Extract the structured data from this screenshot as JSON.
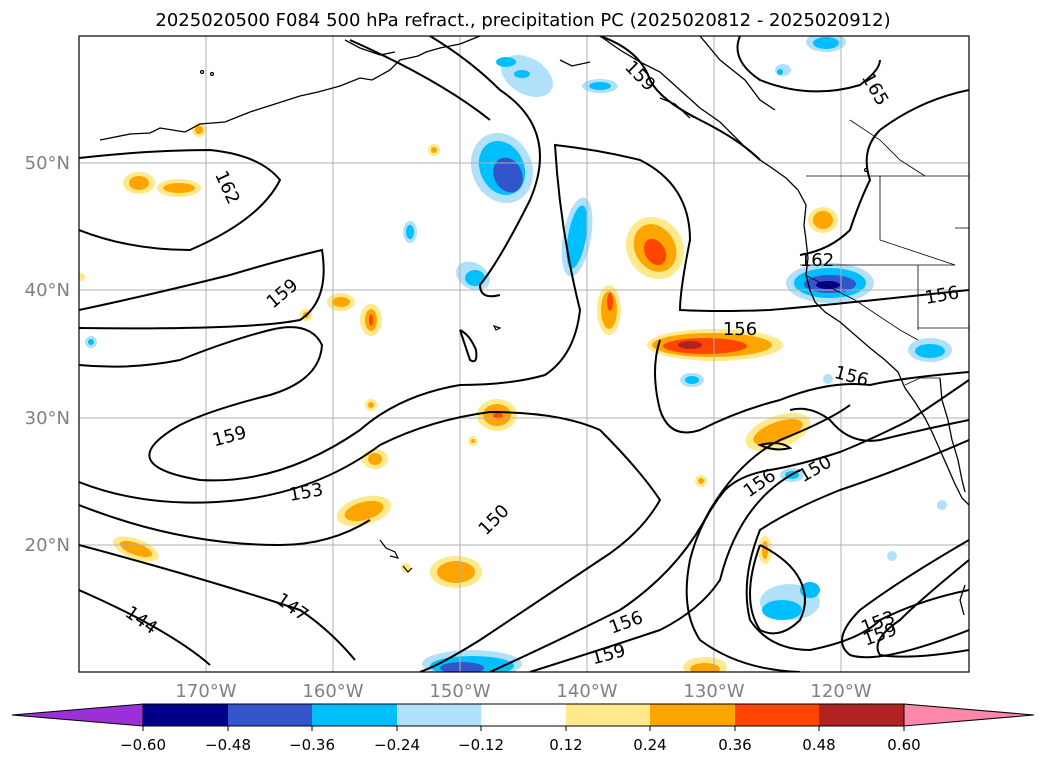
{
  "title": "2025020500 F084 500 hPa refract., precipitation PC (2025020812 - 2025020912)",
  "axes": {
    "lon_ticks": [
      "170°W",
      "160°W",
      "150°W",
      "140°W",
      "130°W",
      "120°W"
    ],
    "lat_ticks": [
      "50°N",
      "40°N",
      "30°N",
      "20°N"
    ]
  },
  "contour_labels": [
    {
      "text": "165",
      "key": "a"
    },
    {
      "text": "162",
      "key": "b"
    },
    {
      "text": "162",
      "key": "c"
    },
    {
      "text": "159",
      "key": "d"
    },
    {
      "text": "159",
      "key": "e"
    },
    {
      "text": "159",
      "key": "f"
    },
    {
      "text": "159",
      "key": "g"
    },
    {
      "text": "159",
      "key": "h"
    },
    {
      "text": "156",
      "key": "i"
    },
    {
      "text": "156",
      "key": "j"
    },
    {
      "text": "156",
      "key": "k"
    },
    {
      "text": "156",
      "key": "l"
    },
    {
      "text": "156",
      "key": "m"
    },
    {
      "text": "153",
      "key": "n"
    },
    {
      "text": "153",
      "key": "o"
    },
    {
      "text": "150",
      "key": "p"
    },
    {
      "text": "150",
      "key": "q"
    },
    {
      "text": "147",
      "key": "r"
    },
    {
      "text": "144",
      "key": "s"
    }
  ],
  "colorbar": {
    "tick_labels": [
      "−0.60",
      "−0.48",
      "−0.36",
      "−0.24",
      "−0.12",
      "0.12",
      "0.24",
      "0.36",
      "0.48",
      "0.60"
    ],
    "colors": [
      "#9b30d9",
      "#00008b",
      "#3355cc",
      "#00bfff",
      "#b0e0fa",
      "#ffffff",
      "#ffe98a",
      "#ffa500",
      "#ff4500",
      "#b22222",
      "#ff88aa"
    ]
  }
}
